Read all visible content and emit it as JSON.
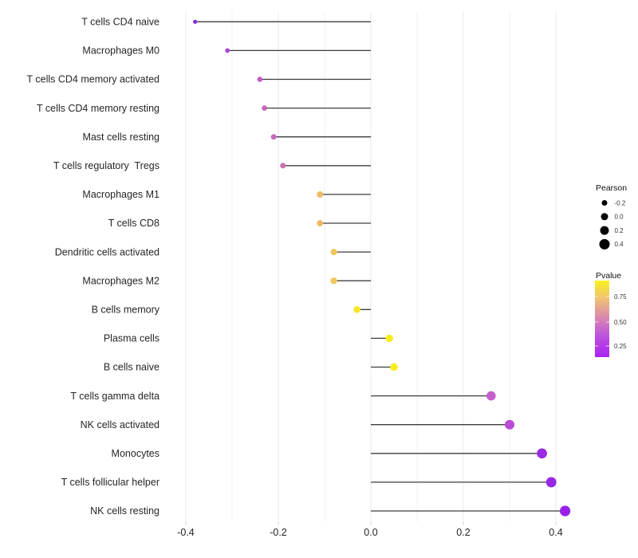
{
  "chart_data": {
    "type": "lollipop",
    "orientation": "horizontal",
    "title": "",
    "xlabel": "",
    "ylabel": "",
    "baseline": 0,
    "x_axis": {
      "ticks": [
        -0.4,
        -0.2,
        0.0,
        0.2,
        0.4
      ],
      "tick_labels": [
        "-0.4",
        "-0.2",
        "0.0",
        "0.2",
        "0.4"
      ],
      "minor_ticks": [
        -0.3,
        -0.1,
        0.1,
        0.3
      ],
      "range": [
        -0.45,
        0.45
      ]
    },
    "encoding": {
      "size": "Pearson",
      "color": "Pvalue"
    },
    "points": [
      {
        "label": "T cells CD4 naive",
        "pearson": -0.38,
        "pvalue_est": 0.08,
        "color": "#8b2bd6"
      },
      {
        "label": "Macrophages M0",
        "pearson": -0.31,
        "pvalue_est": 0.25,
        "color": "#aa49cf"
      },
      {
        "label": "T cells CD4 memory activated",
        "pearson": -0.24,
        "pvalue_est": 0.35,
        "color": "#c05ec6"
      },
      {
        "label": "T cells CD4 memory resting",
        "pearson": -0.23,
        "pvalue_est": 0.38,
        "color": "#c567bc"
      },
      {
        "label": "Mast cells resting",
        "pearson": -0.21,
        "pvalue_est": 0.4,
        "color": "#c76bb8"
      },
      {
        "label": "T cells regulatory  Tregs",
        "pearson": -0.19,
        "pvalue_est": 0.42,
        "color": "#c970b3"
      },
      {
        "label": "Macrophages M1",
        "pearson": -0.11,
        "pvalue_est": 0.72,
        "color": "#eeba68"
      },
      {
        "label": "T cells CD8",
        "pearson": -0.11,
        "pvalue_est": 0.72,
        "color": "#eeba68"
      },
      {
        "label": "Dendritic cells activated",
        "pearson": -0.08,
        "pvalue_est": 0.76,
        "color": "#f0c75c"
      },
      {
        "label": "Macrophages M2",
        "pearson": -0.08,
        "pvalue_est": 0.76,
        "color": "#f0c75c"
      },
      {
        "label": "B cells memory",
        "pearson": -0.03,
        "pvalue_est": 0.88,
        "color": "#f6e724"
      },
      {
        "label": "Plasma cells",
        "pearson": 0.04,
        "pvalue_est": 0.9,
        "color": "#f7ed1d"
      },
      {
        "label": "B cells naive",
        "pearson": 0.05,
        "pvalue_est": 0.9,
        "color": "#f7ed1d"
      },
      {
        "label": "T cells gamma delta",
        "pearson": 0.26,
        "pvalue_est": 0.35,
        "color": "#c55fca"
      },
      {
        "label": "NK cells activated",
        "pearson": 0.3,
        "pvalue_est": 0.28,
        "color": "#b94bd6"
      },
      {
        "label": "Monocytes",
        "pearson": 0.37,
        "pvalue_est": 0.15,
        "color": "#9c2ce3"
      },
      {
        "label": "T cells follicular helper",
        "pearson": 0.39,
        "pvalue_est": 0.13,
        "color": "#9927e6"
      },
      {
        "label": "NK cells resting",
        "pearson": 0.42,
        "pvalue_est": 0.1,
        "color": "#9721e9"
      }
    ],
    "stick_color": "#3d3d3d",
    "grid": {
      "show": true,
      "major_color": "#e8e8e8",
      "minor_color": "#f0f0f0",
      "legend_position": "right"
    }
  },
  "legend_size": {
    "title": "Pearson",
    "dot_color": "#000000",
    "entries": [
      {
        "value": -0.2,
        "label": "-0.2"
      },
      {
        "value": 0.0,
        "label": "0.0"
      },
      {
        "value": 0.2,
        "label": "0.2"
      },
      {
        "value": 0.4,
        "label": "0.4"
      }
    ]
  },
  "legend_color": {
    "title": "Pvalue",
    "tick_labels": [
      "0.75",
      "0.50",
      "0.25"
    ],
    "gradient_stops": [
      "#f8f11f",
      "#f0bd76",
      "#d884b4",
      "#bb4be0",
      "#aa22f0"
    ]
  }
}
